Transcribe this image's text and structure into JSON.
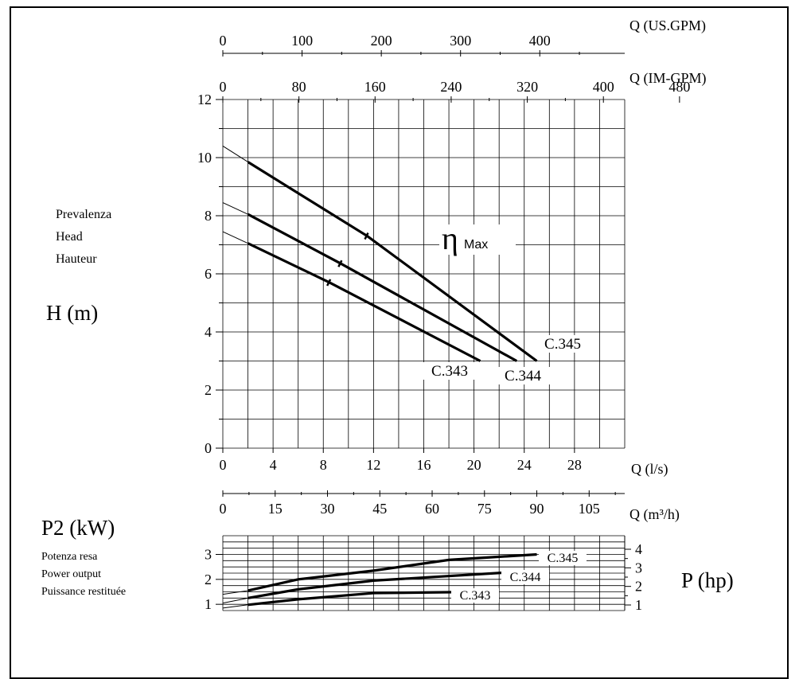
{
  "left_labels": {
    "head_lines": [
      "Prevalenza",
      "Head",
      "Hauteur"
    ],
    "head_unit": "H (m)",
    "power_unit": "P2 (kW)",
    "power_lines": [
      "Potenza resa",
      "Power output",
      "Puissance restituée"
    ]
  },
  "right_labels": {
    "power_hp": "P (hp)"
  },
  "chart_data": [
    {
      "type": "line",
      "ylabel": "H (m)",
      "xlim": [
        0,
        32
      ],
      "ylim": [
        0,
        12
      ],
      "grid": true,
      "x_axes": [
        {
          "label": "Q (US.GPM)",
          "ticks": [
            "0",
            "100",
            "200",
            "300",
            "400"
          ],
          "tick_values": [
            0,
            100,
            200,
            300,
            400
          ],
          "max": 507.2
        },
        {
          "label": "Q (IM-GPM)",
          "ticks": [
            "0",
            "80",
            "160",
            "240",
            "320",
            "400",
            "480"
          ],
          "tick_values": [
            0,
            80,
            160,
            240,
            320,
            400,
            480
          ],
          "max": 422.4
        },
        {
          "label": "Q (l/s)",
          "ticks": [
            "0",
            "4",
            "8",
            "12",
            "16",
            "20",
            "24",
            "28"
          ],
          "tick_values": [
            0,
            4,
            8,
            12,
            16,
            20,
            24,
            28
          ],
          "max": 32
        },
        {
          "label": "Q (m³/h)",
          "ticks": [
            "0",
            "15",
            "30",
            "45",
            "60",
            "75",
            "90",
            "105"
          ],
          "tick_values": [
            0,
            15,
            30,
            45,
            60,
            75,
            90,
            105
          ],
          "max": 115.2
        }
      ],
      "y_ticks": [
        "0",
        "2",
        "4",
        "6",
        "8",
        "10",
        "12"
      ],
      "y_tick_values": [
        0,
        2,
        4,
        6,
        8,
        10,
        12
      ],
      "annotation": {
        "symbol": "η",
        "subscript": "Max"
      },
      "series": [
        {
          "name": "C.343",
          "x": [
            0,
            2,
            8.5,
            20.5
          ],
          "y": [
            7.45,
            7.05,
            5.7,
            3.0
          ],
          "thin_until_x": 2,
          "eta_max_x": 8.5
        },
        {
          "name": "C.344",
          "x": [
            0,
            2,
            9.4,
            23.4
          ],
          "y": [
            8.45,
            8.05,
            6.35,
            3.0
          ],
          "thin_until_x": 2,
          "eta_max_x": 9.4
        },
        {
          "name": "C.345",
          "x": [
            0,
            2,
            11.5,
            25.0
          ],
          "y": [
            10.4,
            9.85,
            7.3,
            3.0
          ],
          "thin_until_x": 2,
          "eta_max_x": 11.5
        }
      ]
    },
    {
      "type": "line",
      "ylabel": "P2 (kW)",
      "y2label": "P (hp)",
      "xlim": [
        0,
        32
      ],
      "ylim": [
        0.75,
        3.75
      ],
      "grid": true,
      "y_ticks": [
        "1",
        "2",
        "3"
      ],
      "y_tick_values": [
        1,
        2,
        3
      ],
      "y2_ticks": [
        "1",
        "2",
        "3",
        "4"
      ],
      "y2_tick_values": [
        1,
        2,
        3,
        4
      ],
      "series": [
        {
          "name": "C.343",
          "x": [
            0,
            2,
            6,
            12,
            20.5
          ],
          "y": [
            0.85,
            0.98,
            1.2,
            1.45,
            1.5
          ],
          "thin_until_x": 2
        },
        {
          "name": "C.344",
          "x": [
            0,
            2,
            6,
            12,
            23.4
          ],
          "y": [
            1.05,
            1.25,
            1.6,
            1.95,
            2.3
          ],
          "thin_until_x": 2
        },
        {
          "name": "C.345",
          "x": [
            0,
            2,
            6,
            12,
            18,
            25.0
          ],
          "y": [
            1.4,
            1.55,
            2.0,
            2.35,
            2.78,
            3.0
          ],
          "thin_until_x": 2
        }
      ]
    }
  ]
}
